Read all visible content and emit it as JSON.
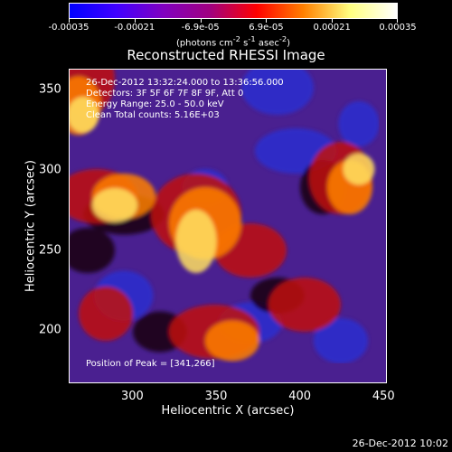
{
  "colorbar": {
    "ticks": [
      "-0.00035",
      "-0.00021",
      "-6.9e-05",
      "6.9e-05",
      "0.00021",
      "0.00035"
    ],
    "unit_html": "(photons cm<sup>-2</sup> s<sup>-1</sup> asec<sup>-2</sup>)",
    "range": [
      -0.00035,
      0.00035
    ],
    "colors": [
      "#0000ff",
      "#4000ff",
      "#8000c0",
      "#a00080",
      "#ff0000",
      "#ff8000",
      "#ffff80",
      "#ffffff"
    ]
  },
  "title": "Reconstructed RHESSI Image",
  "info": {
    "time": "26-Dec-2012 13:32:24.000 to 13:36:56.000",
    "detectors": "Detectors: 3F 5F 6F 7F 8F 9F, Att 0",
    "energy": "Energy Range: 25.0 - 50.0 keV",
    "clean": "Clean     Total counts: 5.16E+03",
    "peak": "Position of Peak = [341,266]"
  },
  "axes": {
    "xlabel": "Heliocentric X (arcsec)",
    "ylabel": "Heliocentric Y (arcsec)",
    "xticks": [
      "300",
      "350",
      "400",
      "450"
    ],
    "yticks": [
      "350",
      "300",
      "250",
      "200"
    ],
    "xlim": [
      262,
      452
    ],
    "ylim": [
      167,
      363
    ]
  },
  "timestamp": "26-Dec-2012 10:02",
  "image_colors": {
    "background": "#4a2090",
    "blue": "#2a30d0",
    "dark": "#1a0010",
    "red": "#c01010",
    "orange": "#ff8000",
    "yellow": "#ffe060"
  }
}
